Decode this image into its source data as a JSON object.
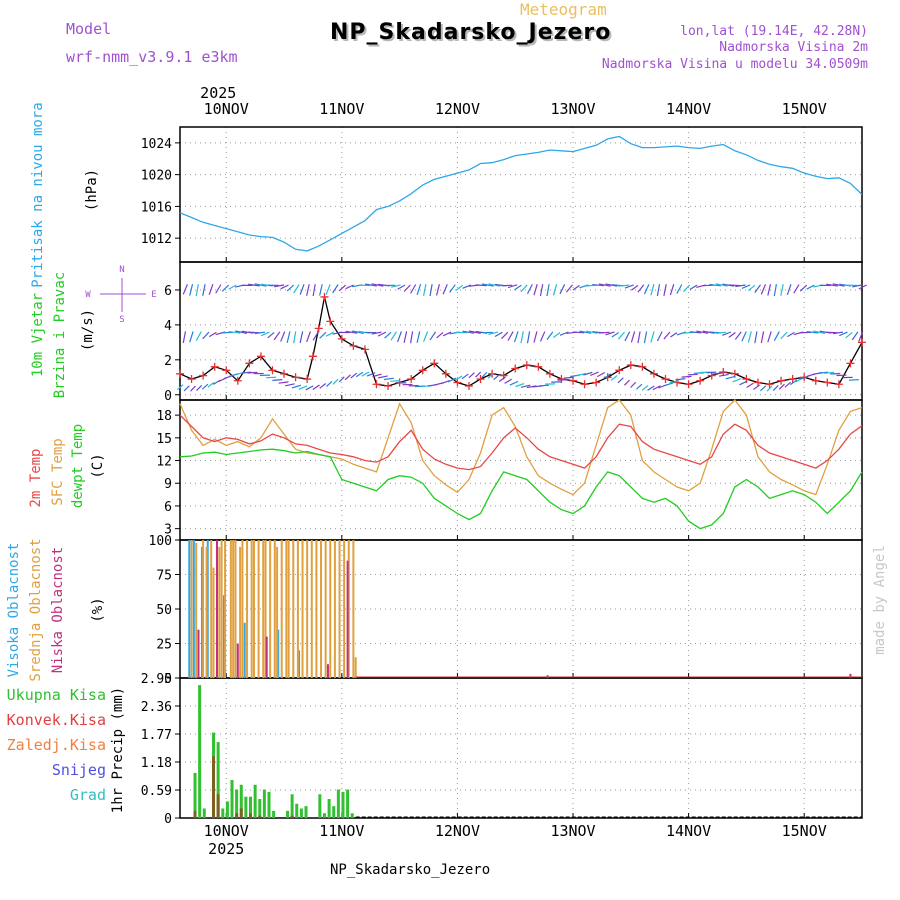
{
  "header": {
    "subtitle": "Meteogram",
    "title": "NP_Skadarsko_Jezero",
    "model_label": "Model",
    "model_value": "wrf-nmm_v3.9.1 e3km",
    "info": [
      "lon,lat (19.14E, 42.28N)",
      "Nadmorska Visina 2m",
      "Nadmorska Visina u modelu 34.0509m"
    ],
    "footer": "NP_Skadarsko_Jezero",
    "watermark": "made by Angel",
    "year": "2025"
  },
  "colors": {
    "pressure": "#2ea8e8",
    "temp2m": "#e84848",
    "sfc": "#e0a040",
    "dewpt": "#22cc22",
    "purple": "#a050d0",
    "precip_total": "#30c030",
    "precip_conv": "#e04040"
  },
  "chart_data": [
    {
      "type": "line",
      "title": "Pritisak na nivou mora",
      "ylabel": "(hPa)",
      "ylim": [
        1009,
        1026
      ],
      "yticks": [
        1012,
        1016,
        1020,
        1024
      ],
      "xlim": [
        9.6,
        15.5
      ],
      "xticks": [
        "10NOV",
        "11NOV",
        "12NOV",
        "13NOV",
        "14NOV",
        "15NOV"
      ],
      "series": [
        {
          "name": "pressure",
          "x": [
            9.6,
            9.7,
            9.8,
            9.9,
            10.0,
            10.1,
            10.2,
            10.3,
            10.4,
            10.5,
            10.6,
            10.7,
            10.8,
            10.9,
            11.0,
            11.1,
            11.2,
            11.3,
            11.4,
            11.5,
            11.6,
            11.7,
            11.8,
            11.9,
            12.0,
            12.1,
            12.2,
            12.3,
            12.4,
            12.5,
            12.6,
            12.7,
            12.8,
            12.9,
            13.0,
            13.1,
            13.2,
            13.3,
            13.4,
            13.5,
            13.6,
            13.7,
            13.8,
            13.9,
            14.0,
            14.1,
            14.2,
            14.3,
            14.4,
            14.5,
            14.6,
            14.7,
            14.8,
            14.9,
            15.0,
            15.1,
            15.2,
            15.3,
            15.4,
            15.5
          ],
          "values": [
            1015.2,
            1014.6,
            1014.0,
            1013.6,
            1013.2,
            1012.8,
            1012.4,
            1012.2,
            1012.1,
            1011.5,
            1010.6,
            1010.4,
            1011.0,
            1011.8,
            1012.6,
            1013.4,
            1014.2,
            1015.6,
            1016.0,
            1016.7,
            1017.6,
            1018.7,
            1019.4,
            1019.8,
            1020.2,
            1020.6,
            1021.4,
            1021.5,
            1021.9,
            1022.4,
            1022.6,
            1022.8,
            1023.1,
            1023.0,
            1022.9,
            1023.3,
            1023.7,
            1024.5,
            1024.8,
            1023.9,
            1023.4,
            1023.4,
            1023.5,
            1023.6,
            1023.4,
            1023.3,
            1023.6,
            1023.8,
            1023.0,
            1022.5,
            1021.8,
            1021.3,
            1021.0,
            1020.8,
            1020.2,
            1019.8,
            1019.5,
            1019.6,
            1018.9,
            1017.5
          ]
        }
      ]
    },
    {
      "type": "line",
      "title": "10m Vjetar Brzina i Pravac",
      "ylabel": "(m/s)",
      "ylim": [
        -0.3,
        7.6
      ],
      "yticks": [
        0,
        2,
        4,
        6
      ],
      "legend_compass": [
        "N",
        "W",
        "E",
        "S"
      ],
      "series": [
        {
          "name": "wind speed",
          "x": [
            9.6,
            9.7,
            9.8,
            9.9,
            10.0,
            10.1,
            10.2,
            10.3,
            10.4,
            10.5,
            10.6,
            10.7,
            10.75,
            10.8,
            10.85,
            10.9,
            11.0,
            11.1,
            11.2,
            11.3,
            11.4,
            11.5,
            11.6,
            11.7,
            11.8,
            11.9,
            12.0,
            12.1,
            12.2,
            12.3,
            12.4,
            12.5,
            12.6,
            12.7,
            12.8,
            12.9,
            13.0,
            13.1,
            13.2,
            13.3,
            13.4,
            13.5,
            13.6,
            13.7,
            13.8,
            13.9,
            14.0,
            14.1,
            14.2,
            14.3,
            14.4,
            14.5,
            14.6,
            14.7,
            14.8,
            14.9,
            15.0,
            15.1,
            15.2,
            15.3,
            15.4,
            15.5
          ],
          "values": [
            1.2,
            0.9,
            1.1,
            1.6,
            1.4,
            0.8,
            1.8,
            2.2,
            1.4,
            1.2,
            1.0,
            0.9,
            2.2,
            3.8,
            5.6,
            4.2,
            3.2,
            2.8,
            2.6,
            0.6,
            0.5,
            0.7,
            0.9,
            1.4,
            1.8,
            1.2,
            0.7,
            0.5,
            0.9,
            1.2,
            1.1,
            1.5,
            1.7,
            1.6,
            1.2,
            0.9,
            0.8,
            0.6,
            0.7,
            1.0,
            1.4,
            1.7,
            1.6,
            1.2,
            0.9,
            0.7,
            0.6,
            0.8,
            1.1,
            1.3,
            1.2,
            0.9,
            0.7,
            0.6,
            0.8,
            0.9,
            1.0,
            0.8,
            0.7,
            0.6,
            1.8,
            3.0
          ]
        }
      ]
    },
    {
      "type": "line",
      "title": "2m Temp / SFC Temp / dewpt Temp",
      "ylabel": "(C)",
      "ylim": [
        1.5,
        20
      ],
      "yticks": [
        3,
        6,
        9,
        12,
        15,
        18
      ],
      "series": [
        {
          "name": "2m Temp",
          "x": [
            9.6,
            9.7,
            9.8,
            9.9,
            10.0,
            10.1,
            10.2,
            10.3,
            10.4,
            10.5,
            10.6,
            10.7,
            10.8,
            10.9,
            11.0,
            11.1,
            11.2,
            11.3,
            11.4,
            11.5,
            11.6,
            11.7,
            11.8,
            11.9,
            12.0,
            12.1,
            12.2,
            12.3,
            12.4,
            12.5,
            12.6,
            12.7,
            12.8,
            12.9,
            13.0,
            13.1,
            13.2,
            13.3,
            13.4,
            13.5,
            13.6,
            13.7,
            13.8,
            13.9,
            14.0,
            14.1,
            14.2,
            14.3,
            14.4,
            14.5,
            14.6,
            14.7,
            14.8,
            14.9,
            15.0,
            15.1,
            15.2,
            15.3,
            15.4,
            15.5
          ],
          "values": [
            18.0,
            16.5,
            15.0,
            14.5,
            15.0,
            14.8,
            14.2,
            14.6,
            15.5,
            15.0,
            14.2,
            14.0,
            13.5,
            13.0,
            12.8,
            12.5,
            12.0,
            11.8,
            12.5,
            14.5,
            16.0,
            13.5,
            12.2,
            11.5,
            11.0,
            10.8,
            11.2,
            13.0,
            15.0,
            16.3,
            15.0,
            13.5,
            12.5,
            12.0,
            11.5,
            11.0,
            12.5,
            15.0,
            16.8,
            16.5,
            14.5,
            13.5,
            13.0,
            12.5,
            12.0,
            11.5,
            12.5,
            15.5,
            16.8,
            16.0,
            14.0,
            13.0,
            12.5,
            12.0,
            11.5,
            11.0,
            12.0,
            13.5,
            15.5,
            16.6
          ]
        },
        {
          "name": "SFC Temp",
          "x": [
            9.6,
            9.7,
            9.8,
            9.9,
            10.0,
            10.1,
            10.2,
            10.3,
            10.4,
            10.5,
            10.6,
            10.7,
            10.8,
            10.9,
            11.0,
            11.1,
            11.2,
            11.3,
            11.4,
            11.5,
            11.6,
            11.7,
            11.8,
            11.9,
            12.0,
            12.1,
            12.2,
            12.3,
            12.4,
            12.5,
            12.6,
            12.7,
            12.8,
            12.9,
            13.0,
            13.1,
            13.2,
            13.3,
            13.4,
            13.5,
            13.6,
            13.7,
            13.8,
            13.9,
            14.0,
            14.1,
            14.2,
            14.3,
            14.4,
            14.5,
            14.6,
            14.7,
            14.8,
            14.9,
            15.0,
            15.1,
            15.2,
            15.3,
            15.4,
            15.5
          ],
          "values": [
            19.5,
            16.0,
            14.0,
            14.8,
            14.0,
            14.5,
            13.8,
            15.0,
            17.5,
            15.5,
            13.5,
            13.0,
            12.8,
            12.5,
            12.2,
            11.5,
            11.0,
            10.5,
            15.0,
            19.5,
            17.0,
            12.0,
            10.0,
            8.8,
            7.8,
            9.5,
            13.0,
            18.0,
            19.0,
            16.5,
            12.5,
            10.0,
            9.0,
            8.2,
            7.5,
            9.0,
            14.0,
            19.0,
            20.0,
            18.0,
            12.0,
            10.5,
            9.5,
            8.5,
            8.0,
            9.0,
            13.5,
            18.5,
            20.0,
            18.0,
            12.5,
            10.5,
            9.5,
            8.8,
            8.0,
            7.5,
            11.5,
            16.0,
            18.5,
            19.0
          ]
        },
        {
          "name": "dewpt Temp",
          "x": [
            9.6,
            9.7,
            9.8,
            9.9,
            10.0,
            10.1,
            10.2,
            10.3,
            10.4,
            10.5,
            10.6,
            10.7,
            10.8,
            10.9,
            11.0,
            11.1,
            11.2,
            11.3,
            11.4,
            11.5,
            11.6,
            11.7,
            11.8,
            11.9,
            12.0,
            12.1,
            12.2,
            12.3,
            12.4,
            12.5,
            12.6,
            12.7,
            12.8,
            12.9,
            13.0,
            13.1,
            13.2,
            13.3,
            13.4,
            13.5,
            13.6,
            13.7,
            13.8,
            13.9,
            14.0,
            14.1,
            14.2,
            14.3,
            14.4,
            14.5,
            14.6,
            14.7,
            14.8,
            14.9,
            15.0,
            15.1,
            15.2,
            15.3,
            15.4,
            15.5
          ],
          "values": [
            12.5,
            12.6,
            13.0,
            13.1,
            12.8,
            13.0,
            13.2,
            13.4,
            13.5,
            13.3,
            13.0,
            13.2,
            12.8,
            12.5,
            9.5,
            9.0,
            8.5,
            8.0,
            9.5,
            10.0,
            9.8,
            9.0,
            7.0,
            6.0,
            5.0,
            4.2,
            5.0,
            8.0,
            10.5,
            10.0,
            9.5,
            8.0,
            6.5,
            5.5,
            5.0,
            6.0,
            8.5,
            10.5,
            10.0,
            8.5,
            7.0,
            6.5,
            7.0,
            6.0,
            4.0,
            3.0,
            3.5,
            5.0,
            8.5,
            9.5,
            8.5,
            7.0,
            7.5,
            8.0,
            7.5,
            6.5,
            5.0,
            6.5,
            8.0,
            10.5
          ]
        }
      ]
    },
    {
      "type": "bar",
      "title": "Visoka / Srednja / Niska Oblacnost",
      "ylabel": "(%)",
      "ylim": [
        0,
        100
      ],
      "yticks": [
        0,
        25,
        50,
        75,
        100
      ],
      "series": [
        {
          "name": "Visoka Oblacnost",
          "x": [
            9.68,
            9.72,
            9.79,
            9.84,
            9.98,
            10.16,
            10.45,
            10.63
          ],
          "values": [
            100,
            100,
            95,
            100,
            60,
            40,
            35,
            20
          ]
        },
        {
          "name": "Srednja Oblacnost",
          "x": [
            9.7,
            9.74,
            9.8,
            9.83,
            9.87,
            9.89,
            9.94,
            9.96,
            9.99,
            10.04,
            10.06,
            10.08,
            10.12,
            10.14,
            10.18,
            10.22,
            10.24,
            10.28,
            10.32,
            10.34,
            10.38,
            10.42,
            10.44,
            10.48,
            10.52,
            10.54,
            10.58,
            10.62,
            10.66,
            10.7,
            10.74,
            10.78,
            10.82,
            10.86,
            10.9,
            10.94,
            10.98,
            11.02,
            11.06,
            11.1,
            11.12
          ],
          "values": [
            100,
            98,
            100,
            95,
            100,
            80,
            95,
            100,
            100,
            100,
            100,
            100,
            95,
            100,
            100,
            100,
            100,
            100,
            100,
            100,
            100,
            100,
            95,
            100,
            100,
            100,
            100,
            100,
            100,
            100,
            100,
            100,
            100,
            100,
            100,
            100,
            100,
            100,
            100,
            100,
            15
          ]
        },
        {
          "name": "Niska Oblacnost",
          "x": [
            9.76,
            9.92,
            10.1,
            10.35,
            10.88,
            11.05,
            12.78,
            15.4
          ],
          "values": [
            35,
            100,
            25,
            30,
            10,
            85,
            2,
            3
          ]
        }
      ]
    },
    {
      "type": "bar",
      "title": "1hr Precip",
      "ylabel": "1hr Precip (mm)",
      "ylim": [
        0,
        2.95
      ],
      "yticks": [
        0,
        0.59,
        1.18,
        1.77,
        2.36,
        2.95
      ],
      "legend": [
        "Ukupna Kisa",
        "Konvek.Kisa",
        "Zaledj.Kisa",
        "Snijeg",
        "Grad"
      ],
      "series": [
        {
          "name": "Ukupna Kisa",
          "x": [
            9.73,
            9.77,
            9.81,
            9.89,
            9.93,
            9.97,
            10.01,
            10.05,
            10.09,
            10.13,
            10.17,
            10.21,
            10.25,
            10.29,
            10.33,
            10.37,
            10.41,
            10.53,
            10.57,
            10.61,
            10.65,
            10.69,
            10.81,
            10.85,
            10.89,
            10.93,
            10.97,
            11.01,
            11.05,
            11.09
          ],
          "values": [
            0.95,
            2.8,
            0.2,
            1.8,
            1.6,
            0.2,
            0.35,
            0.8,
            0.6,
            0.7,
            0.45,
            0.45,
            0.7,
            0.4,
            0.6,
            0.55,
            0.15,
            0.15,
            0.5,
            0.3,
            0.2,
            0.25,
            0.5,
            0.1,
            0.4,
            0.25,
            0.6,
            0.55,
            0.6,
            0.1
          ]
        },
        {
          "name": "Konvek.Kisa",
          "x": [
            9.73,
            9.89,
            9.93,
            10.09,
            10.13,
            10.21,
            10.29,
            10.57
          ],
          "values": [
            0.15,
            1.3,
            0.5,
            0.1,
            0.2,
            0.1,
            0.05,
            0.05
          ]
        }
      ]
    }
  ],
  "axes_labels": {
    "pressure": "Pritisak na nivou mora",
    "pressure_unit": "(hPa)",
    "wind1": "10m Vjetar",
    "wind2": "Brzina i Pravac",
    "wind_unit": "(m/s)",
    "temp1": "2m Temp",
    "temp2": "SFC Temp",
    "temp3": "dewpt Temp",
    "temp_unit": "(C)",
    "cloud1": "Visoka Oblacnost",
    "cloud2": "Srednja Oblacnost",
    "cloud3": "Niska Oblacnost",
    "cloud_unit": "(%)",
    "precip_unit": "1hr Precip (mm)"
  }
}
